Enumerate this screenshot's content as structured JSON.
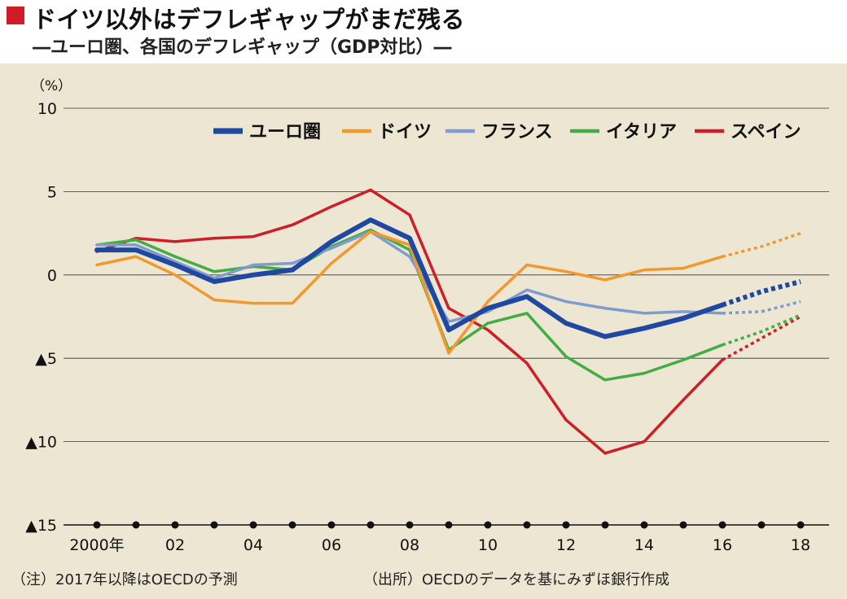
{
  "header": {
    "title": "ドイツ以外はデフレギャップがまだ残る",
    "subtitle": "―ユーロ圏、各国のデフレギャップ（GDP対比）―"
  },
  "footer": {
    "note": "（注）2017年以降はOECDの予測",
    "source": "（出所）OECDのデータを基にみずほ銀行作成"
  },
  "chart_data": {
    "type": "line",
    "title": "ドイツ以外はデフレギャップがまだ残る",
    "subtitle": "―ユーロ圏、各国のデフレギャップ（GDP対比）―",
    "y_unit_label": "（%）",
    "ylim": [
      -15,
      10
    ],
    "y_ticks": [
      {
        "value": 10,
        "label": "10"
      },
      {
        "value": 5,
        "label": "5"
      },
      {
        "value": 0,
        "label": "0"
      },
      {
        "value": -5,
        "label": "▲5"
      },
      {
        "value": -10,
        "label": "▲10"
      },
      {
        "value": -15,
        "label": "▲15"
      }
    ],
    "xlim": [
      2000,
      2018
    ],
    "x": [
      2000,
      2001,
      2002,
      2003,
      2004,
      2005,
      2006,
      2007,
      2008,
      2009,
      2010,
      2011,
      2012,
      2013,
      2014,
      2015,
      2016,
      2017,
      2018
    ],
    "x_tick_labels": [
      {
        "value": 2000,
        "label": "2000年"
      },
      {
        "value": 2002,
        "label": "02"
      },
      {
        "value": 2004,
        "label": "04"
      },
      {
        "value": 2006,
        "label": "06"
      },
      {
        "value": 2008,
        "label": "08"
      },
      {
        "value": 2010,
        "label": "10"
      },
      {
        "value": 2012,
        "label": "12"
      },
      {
        "value": 2014,
        "label": "14"
      },
      {
        "value": 2016,
        "label": "16"
      },
      {
        "value": 2018,
        "label": "18"
      }
    ],
    "forecast_from": 2016,
    "grid": true,
    "legend_position": "top-right",
    "series": [
      {
        "name": "ユーロ圏",
        "color": "#1f48a0",
        "width": 6,
        "values": [
          1.5,
          1.5,
          0.6,
          -0.4,
          0.0,
          0.3,
          2.0,
          3.3,
          2.2,
          -3.3,
          -2.0,
          -1.3,
          -2.9,
          -3.7,
          -3.2,
          -2.6,
          -1.8,
          -1.0,
          -0.4
        ]
      },
      {
        "name": "ドイツ",
        "color": "#f2992e",
        "width": 3.5,
        "values": [
          0.6,
          1.1,
          0.0,
          -1.5,
          -1.7,
          -1.7,
          0.7,
          2.6,
          1.8,
          -4.7,
          -1.6,
          0.6,
          0.2,
          -0.3,
          0.3,
          0.4,
          1.1,
          1.7,
          2.5
        ]
      },
      {
        "name": "フランス",
        "color": "#7e9ccd",
        "width": 3.5,
        "values": [
          1.8,
          1.8,
          0.8,
          -0.2,
          0.6,
          0.7,
          1.6,
          2.6,
          1.1,
          -2.8,
          -2.2,
          -0.9,
          -1.6,
          -2.0,
          -2.3,
          -2.2,
          -2.3,
          -2.2,
          -1.6
        ]
      },
      {
        "name": "イタリア",
        "color": "#42ad45",
        "width": 3.5,
        "values": [
          1.8,
          2.1,
          1.1,
          0.2,
          0.5,
          0.3,
          1.7,
          2.7,
          1.5,
          -4.5,
          -2.9,
          -2.3,
          -4.9,
          -6.3,
          -5.9,
          -5.1,
          -4.2,
          -3.4,
          -2.4
        ]
      },
      {
        "name": "スペイン",
        "color": "#cc1f2a",
        "width": 3.5,
        "values": [
          1.4,
          2.2,
          2.0,
          2.2,
          2.3,
          3.0,
          4.1,
          5.1,
          3.6,
          -2.0,
          -3.3,
          -5.3,
          -8.7,
          -10.7,
          -10.0,
          -7.5,
          -5.1,
          -3.8,
          -2.5
        ]
      }
    ]
  }
}
